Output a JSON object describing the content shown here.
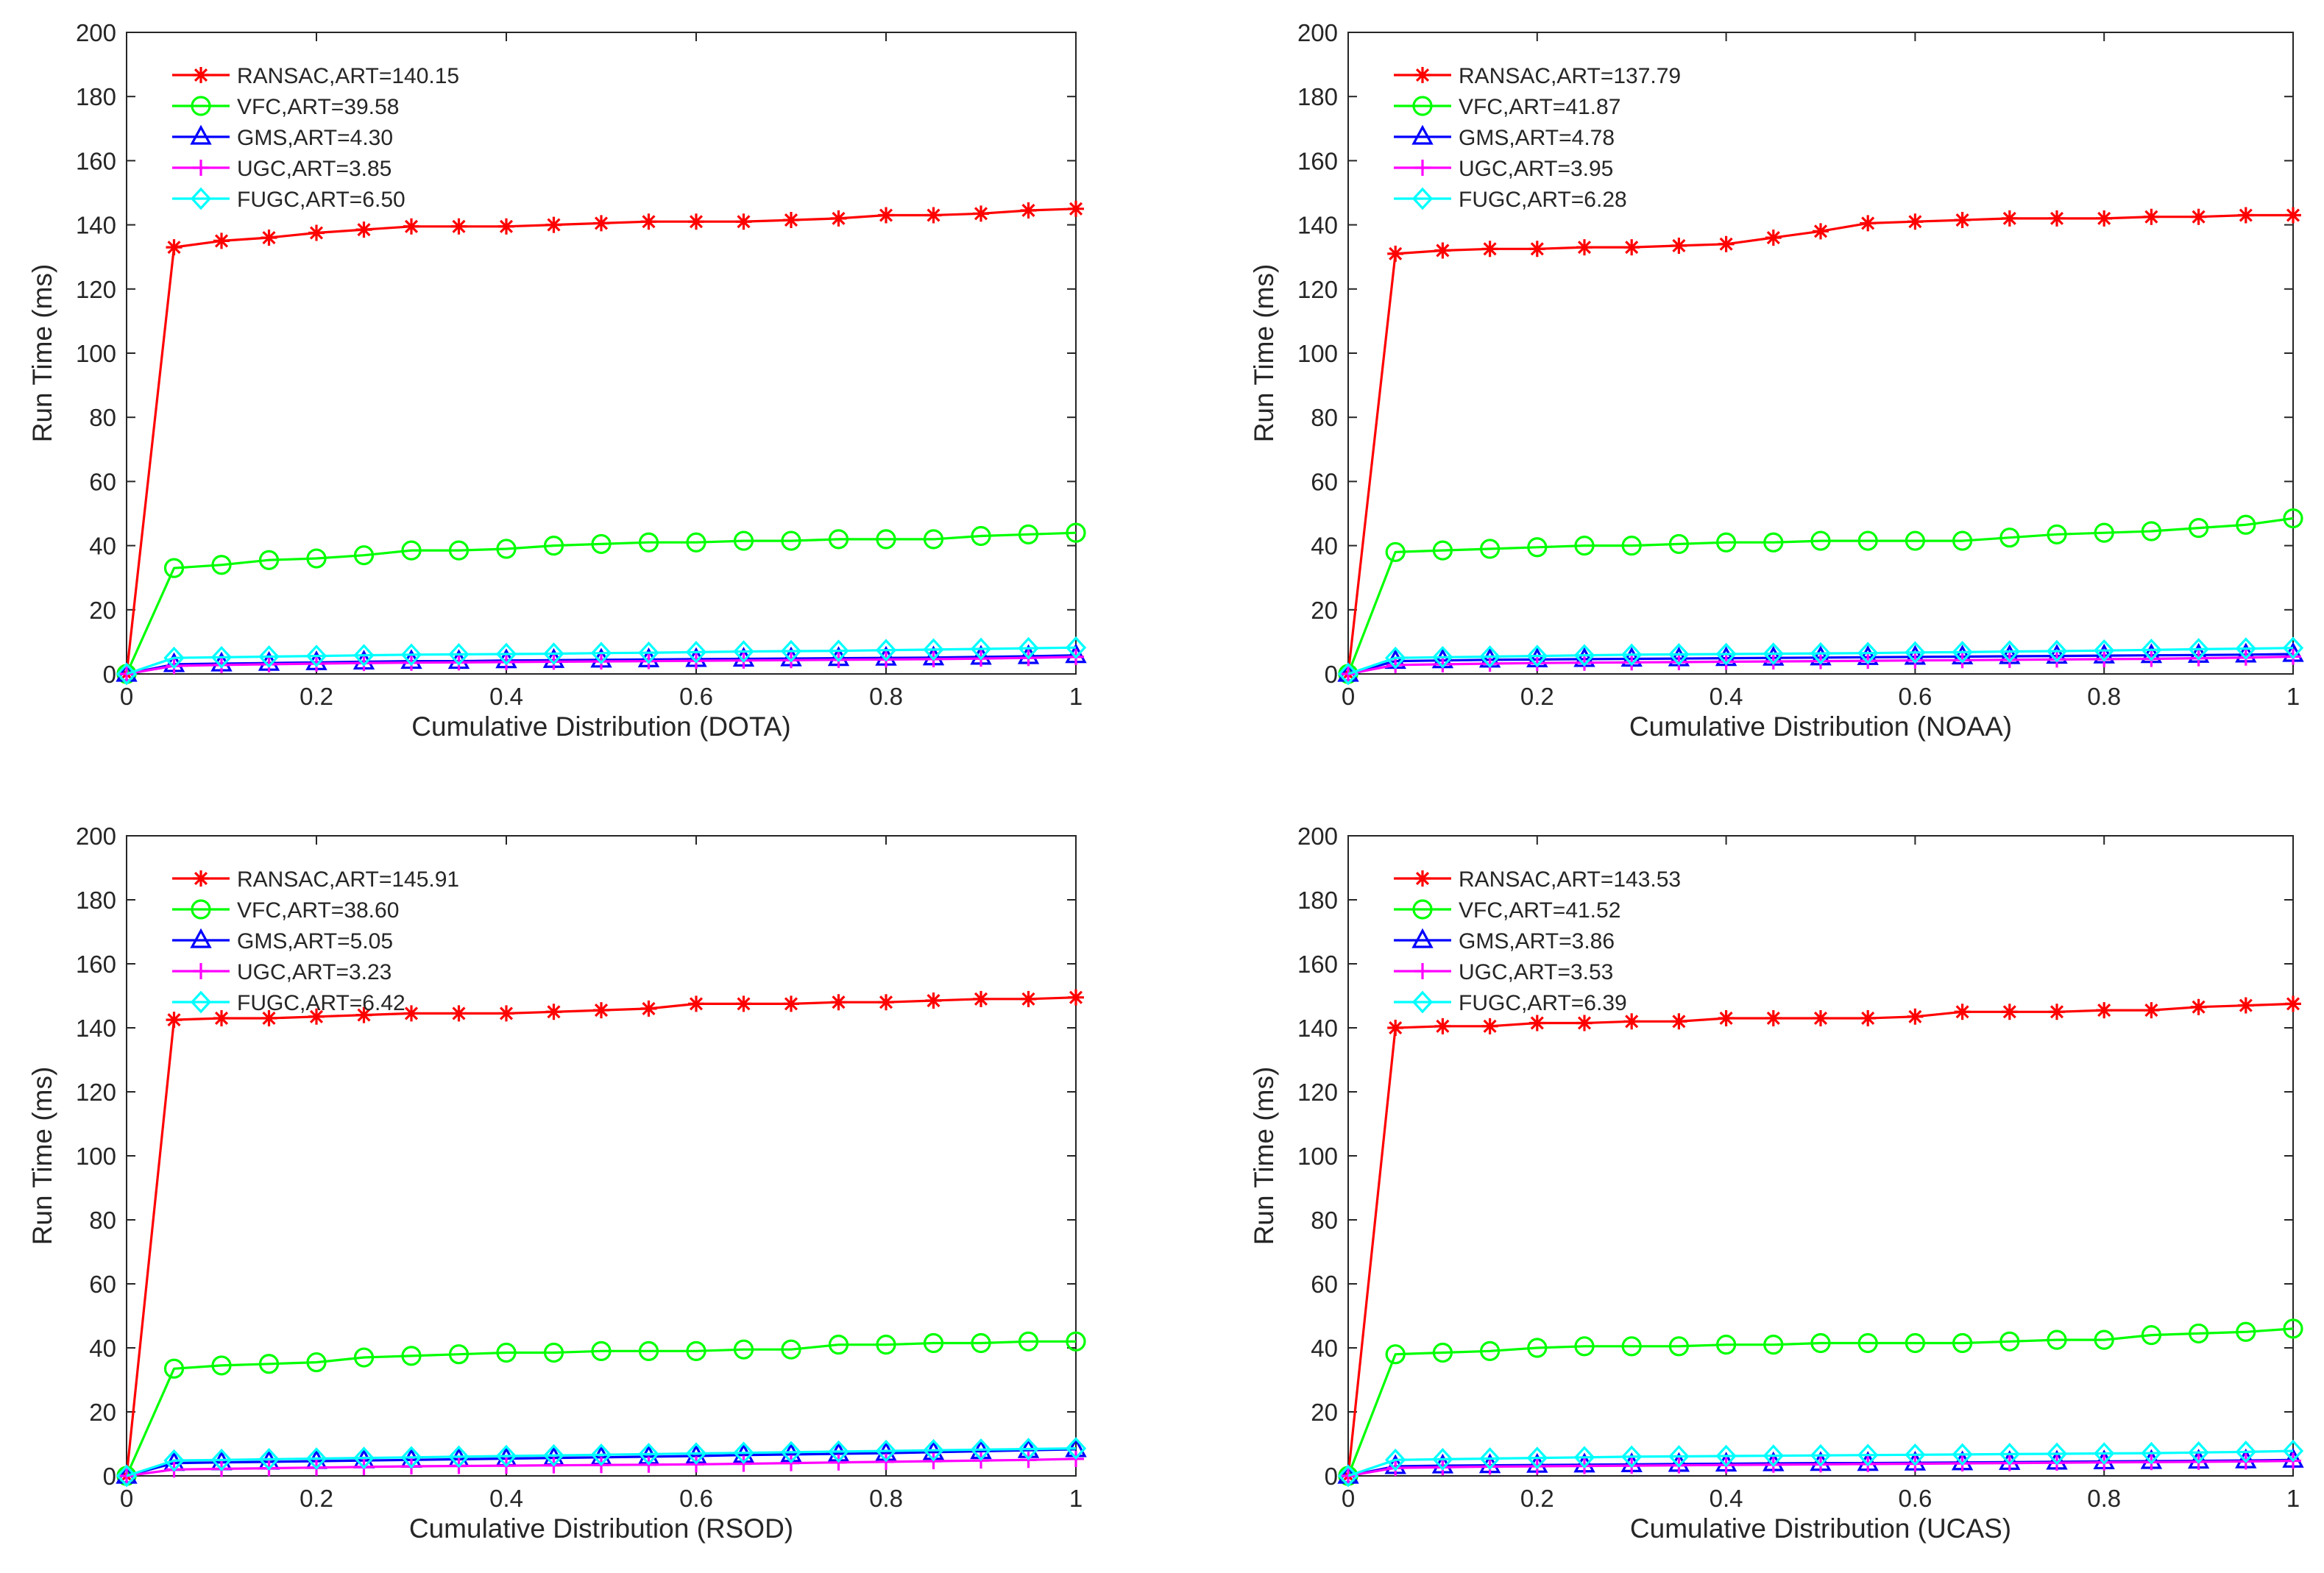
{
  "chart_data": [
    {
      "type": "line",
      "xlabel": "Cumulative Distribution (DOTA)",
      "ylabel": "Run Time (ms)",
      "xlim": [
        0,
        1
      ],
      "ylim": [
        0,
        200
      ],
      "xticks": [
        "0",
        "0.2",
        "0.4",
        "0.6",
        "0.8",
        "1"
      ],
      "yticks": [
        "0",
        "20",
        "40",
        "60",
        "80",
        "100",
        "120",
        "140",
        "160",
        "180",
        "200"
      ],
      "legend_position": "top-left",
      "x": [
        0,
        0.05,
        0.1,
        0.15,
        0.2,
        0.25,
        0.3,
        0.35,
        0.4,
        0.45,
        0.5,
        0.55,
        0.6,
        0.65,
        0.7,
        0.75,
        0.8,
        0.85,
        0.9,
        0.95,
        1
      ],
      "series": [
        {
          "name": "RANSAC,ART=140.15",
          "color": "#ff0000",
          "marker": "asterisk",
          "values": [
            0,
            133,
            135,
            136,
            137.5,
            138.5,
            139.5,
            139.5,
            139.5,
            140,
            140.5,
            141,
            141,
            141,
            141.5,
            142,
            143,
            143,
            143.5,
            144.5,
            145
          ]
        },
        {
          "name": "VFC,ART=39.58",
          "color": "#00ff00",
          "marker": "circle",
          "values": [
            0,
            33,
            34,
            35.5,
            36,
            37,
            38.5,
            38.5,
            39,
            40,
            40.5,
            41,
            41,
            41.5,
            41.5,
            42,
            42,
            42,
            43,
            43.5,
            44
          ]
        },
        {
          "name": "GMS,ART=4.30",
          "color": "#0000ff",
          "marker": "triangle",
          "values": [
            0,
            3,
            3.2,
            3.4,
            3.6,
            3.8,
            4,
            4,
            4.2,
            4.3,
            4.4,
            4.5,
            4.6,
            4.7,
            4.8,
            4.9,
            5,
            5.1,
            5.3,
            5.5,
            5.8
          ]
        },
        {
          "name": "UGC,ART=3.85",
          "color": "#ff00ff",
          "marker": "plus",
          "values": [
            0,
            2.5,
            2.8,
            3,
            3.2,
            3.4,
            3.5,
            3.6,
            3.7,
            3.8,
            3.9,
            4,
            4.1,
            4.2,
            4.3,
            4.4,
            4.5,
            4.6,
            4.8,
            5,
            5.3
          ]
        },
        {
          "name": "FUGC,ART=6.50",
          "color": "#00ffff",
          "marker": "diamond",
          "values": [
            0,
            5,
            5.2,
            5.4,
            5.6,
            5.8,
            6,
            6.1,
            6.2,
            6.3,
            6.5,
            6.6,
            6.8,
            7,
            7.1,
            7.2,
            7.4,
            7.6,
            7.8,
            8,
            8.2
          ]
        }
      ]
    },
    {
      "type": "line",
      "xlabel": "Cumulative Distribution (NOAA)",
      "ylabel": "Run Time (ms)",
      "xlim": [
        0,
        1
      ],
      "ylim": [
        0,
        200
      ],
      "xticks": [
        "0",
        "0.2",
        "0.4",
        "0.6",
        "0.8",
        "1"
      ],
      "yticks": [
        "0",
        "20",
        "40",
        "60",
        "80",
        "100",
        "120",
        "140",
        "160",
        "180",
        "200"
      ],
      "legend_position": "top-left",
      "x": [
        0,
        0.05,
        0.1,
        0.15,
        0.2,
        0.25,
        0.3,
        0.35,
        0.4,
        0.45,
        0.5,
        0.55,
        0.6,
        0.65,
        0.7,
        0.75,
        0.8,
        0.85,
        0.9,
        0.95,
        1
      ],
      "series": [
        {
          "name": "RANSAC,ART=137.79",
          "color": "#ff0000",
          "marker": "asterisk",
          "values": [
            0,
            131,
            132,
            132.5,
            132.5,
            133,
            133,
            133.5,
            134,
            136,
            138,
            140.5,
            141,
            141.5,
            142,
            142,
            142,
            142.5,
            142.5,
            143,
            143
          ]
        },
        {
          "name": "VFC,ART=41.87",
          "color": "#00ff00",
          "marker": "circle",
          "values": [
            0,
            38,
            38.5,
            39,
            39.5,
            40,
            40,
            40.5,
            41,
            41,
            41.5,
            41.5,
            41.5,
            41.5,
            42.5,
            43.5,
            44,
            44.5,
            45.5,
            46.5,
            48.5
          ]
        },
        {
          "name": "GMS,ART=4.78",
          "color": "#0000ff",
          "marker": "triangle",
          "values": [
            0,
            4,
            4.2,
            4.4,
            4.5,
            4.6,
            4.7,
            4.8,
            4.9,
            5,
            5.1,
            5.2,
            5.3,
            5.4,
            5.5,
            5.6,
            5.7,
            5.8,
            5.9,
            6,
            6.2
          ]
        },
        {
          "name": "UGC,ART=3.95",
          "color": "#ff00ff",
          "marker": "plus",
          "values": [
            0,
            2.8,
            3,
            3.2,
            3.4,
            3.5,
            3.6,
            3.7,
            3.8,
            3.9,
            4,
            4.1,
            4.2,
            4.3,
            4.4,
            4.5,
            4.6,
            4.7,
            4.9,
            5.1,
            5.4
          ]
        },
        {
          "name": "FUGC,ART=6.28",
          "color": "#00ffff",
          "marker": "diamond",
          "values": [
            0,
            5,
            5.2,
            5.4,
            5.6,
            5.8,
            6,
            6.1,
            6.2,
            6.3,
            6.4,
            6.5,
            6.7,
            6.8,
            7,
            7.1,
            7.3,
            7.5,
            7.7,
            7.9,
            8.1
          ]
        }
      ]
    },
    {
      "type": "line",
      "xlabel": "Cumulative Distribution (RSOD)",
      "ylabel": "Run Time (ms)",
      "xlim": [
        0,
        1
      ],
      "ylim": [
        0,
        200
      ],
      "xticks": [
        "0",
        "0.2",
        "0.4",
        "0.6",
        "0.8",
        "1"
      ],
      "yticks": [
        "0",
        "20",
        "40",
        "60",
        "80",
        "100",
        "120",
        "140",
        "160",
        "180",
        "200"
      ],
      "legend_position": "top-left",
      "x": [
        0,
        0.05,
        0.1,
        0.15,
        0.2,
        0.25,
        0.3,
        0.35,
        0.4,
        0.45,
        0.5,
        0.55,
        0.6,
        0.65,
        0.7,
        0.75,
        0.8,
        0.85,
        0.9,
        0.95,
        1
      ],
      "series": [
        {
          "name": "RANSAC,ART=145.91",
          "color": "#ff0000",
          "marker": "asterisk",
          "values": [
            0,
            142.5,
            143,
            143,
            143.5,
            144,
            144.5,
            144.5,
            144.5,
            145,
            145.5,
            146,
            147.5,
            147.5,
            147.5,
            148,
            148,
            148.5,
            149,
            149,
            149.5
          ]
        },
        {
          "name": "VFC,ART=38.60",
          "color": "#00ff00",
          "marker": "circle",
          "values": [
            0,
            33.5,
            34.5,
            35,
            35.5,
            37,
            37.5,
            38,
            38.5,
            38.5,
            39,
            39,
            39,
            39.5,
            39.5,
            41,
            41,
            41.5,
            41.5,
            42,
            42
          ]
        },
        {
          "name": "GMS,ART=5.05",
          "color": "#0000ff",
          "marker": "triangle",
          "values": [
            0,
            4,
            4.2,
            4.4,
            4.6,
            4.8,
            5,
            5.2,
            5.4,
            5.6,
            5.8,
            6,
            6.2,
            6.5,
            6.7,
            6.9,
            7.1,
            7.4,
            7.7,
            8,
            8.3
          ]
        },
        {
          "name": "UGC,ART=3.23",
          "color": "#ff00ff",
          "marker": "plus",
          "values": [
            0,
            2,
            2.2,
            2.4,
            2.6,
            2.8,
            3,
            3.1,
            3.2,
            3.3,
            3.4,
            3.5,
            3.6,
            3.8,
            4,
            4.2,
            4.4,
            4.6,
            4.8,
            5,
            5.3
          ]
        },
        {
          "name": "FUGC,ART=6.42",
          "color": "#00ffff",
          "marker": "diamond",
          "values": [
            0,
            4.8,
            5,
            5.2,
            5.4,
            5.6,
            5.8,
            6,
            6.2,
            6.4,
            6.6,
            6.8,
            7,
            7.2,
            7.4,
            7.6,
            7.8,
            8,
            8.2,
            8.4,
            8.6
          ]
        }
      ]
    },
    {
      "type": "line",
      "xlabel": "Cumulative Distribution (UCAS)",
      "ylabel": "Run Time (ms)",
      "xlim": [
        0,
        1
      ],
      "ylim": [
        0,
        200
      ],
      "xticks": [
        "0",
        "0.2",
        "0.4",
        "0.6",
        "0.8",
        "1"
      ],
      "yticks": [
        "0",
        "20",
        "40",
        "60",
        "80",
        "100",
        "120",
        "140",
        "160",
        "180",
        "200"
      ],
      "legend_position": "top-left",
      "x": [
        0,
        0.05,
        0.1,
        0.15,
        0.2,
        0.25,
        0.3,
        0.35,
        0.4,
        0.45,
        0.5,
        0.55,
        0.6,
        0.65,
        0.7,
        0.75,
        0.8,
        0.85,
        0.9,
        0.95,
        1
      ],
      "series": [
        {
          "name": "RANSAC,ART=143.53",
          "color": "#ff0000",
          "marker": "asterisk",
          "values": [
            0,
            140,
            140.5,
            140.5,
            141.5,
            141.5,
            142,
            142,
            143,
            143,
            143,
            143,
            143.5,
            145,
            145,
            145,
            145.5,
            145.5,
            146.5,
            147,
            147.5
          ]
        },
        {
          "name": "VFC,ART=41.52",
          "color": "#00ff00",
          "marker": "circle",
          "values": [
            0,
            38,
            38.5,
            39,
            40,
            40.5,
            40.5,
            40.5,
            41,
            41,
            41.5,
            41.5,
            41.5,
            41.5,
            42,
            42.5,
            42.5,
            44,
            44.5,
            45,
            46
          ]
        },
        {
          "name": "GMS,ART=3.86",
          "color": "#0000ff",
          "marker": "triangle",
          "values": [
            0,
            3,
            3.2,
            3.3,
            3.4,
            3.5,
            3.6,
            3.7,
            3.8,
            3.9,
            4,
            4,
            4.1,
            4.2,
            4.3,
            4.4,
            4.5,
            4.6,
            4.7,
            4.8,
            5
          ]
        },
        {
          "name": "UGC,ART=3.53",
          "color": "#ff00ff",
          "marker": "plus",
          "values": [
            0,
            2.5,
            2.7,
            2.9,
            3,
            3.1,
            3.2,
            3.3,
            3.4,
            3.5,
            3.6,
            3.7,
            3.8,
            3.9,
            4,
            4.1,
            4.2,
            4.3,
            4.4,
            4.5,
            4.7
          ]
        },
        {
          "name": "FUGC,ART=6.39",
          "color": "#00ffff",
          "marker": "diamond",
          "values": [
            0,
            5,
            5.2,
            5.4,
            5.6,
            5.8,
            6,
            6.1,
            6.2,
            6.3,
            6.4,
            6.5,
            6.6,
            6.7,
            6.8,
            6.9,
            7,
            7.1,
            7.3,
            7.5,
            7.8
          ]
        }
      ]
    }
  ]
}
